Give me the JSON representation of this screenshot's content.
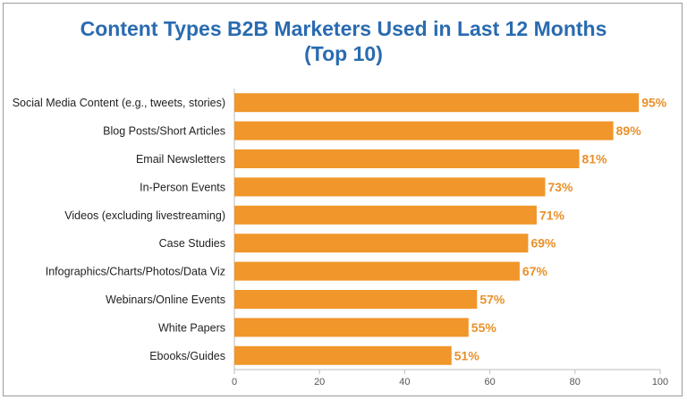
{
  "chart_data": {
    "type": "bar",
    "orientation": "horizontal",
    "title": "Content Types B2B Marketers Used in Last 12 Months",
    "subtitle": "(Top 10)",
    "categories": [
      "Social Media Content (e.g., tweets, stories)",
      "Blog Posts/Short Articles",
      "Email Newsletters",
      "In-Person Events",
      "Videos (excluding livestreaming)",
      "Case Studies",
      "Infographics/Charts/Photos/Data Viz",
      "Webinars/Online Events",
      "White Papers",
      "Ebooks/Guides"
    ],
    "values": [
      95,
      89,
      81,
      73,
      71,
      69,
      67,
      57,
      55,
      51
    ],
    "value_labels": [
      "95%",
      "89%",
      "81%",
      "73%",
      "71%",
      "69%",
      "67%",
      "57%",
      "55%",
      "51%"
    ],
    "xlim": [
      0,
      100
    ],
    "xticks": [
      0,
      20,
      40,
      60,
      80,
      100
    ],
    "xlabel": "",
    "ylabel": "",
    "grid": false,
    "bar_color": "#f0962a",
    "label_color": "#e8912a",
    "title_color": "#2a6bb0"
  }
}
